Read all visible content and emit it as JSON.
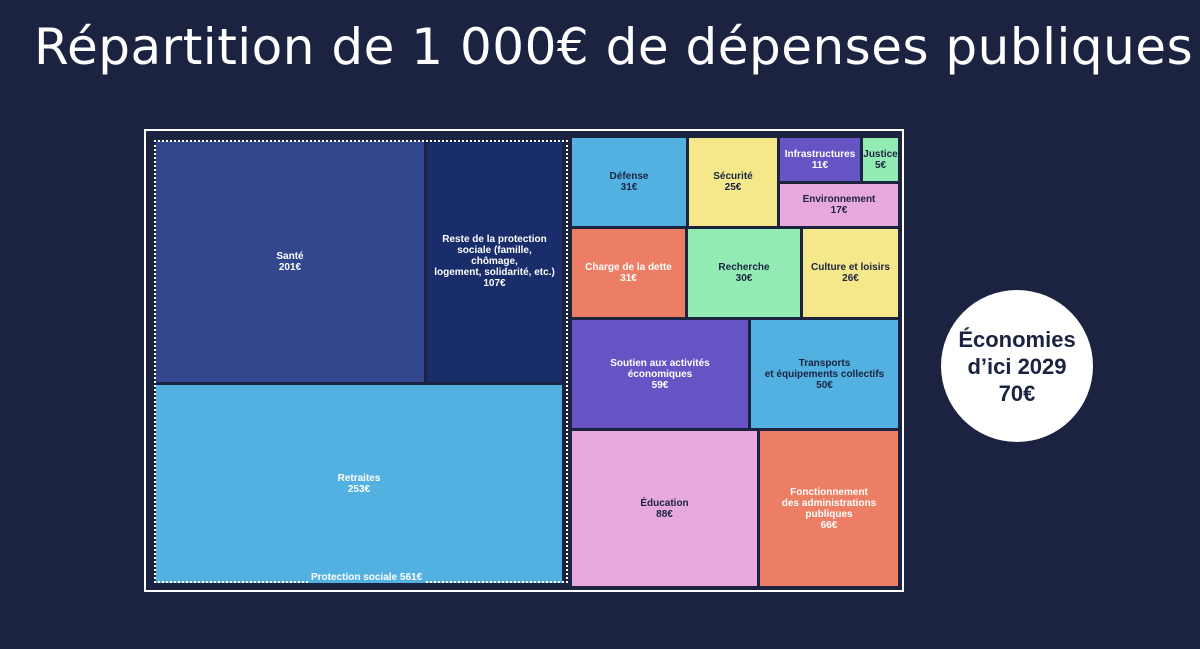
{
  "title": "Répartition de 1 000€ de dépenses publiques",
  "savings": {
    "line1": "Économies",
    "line2": "d’ici 2029",
    "amount": "70€"
  },
  "chart_data": {
    "type": "treemap",
    "title": "Répartition de 1 000€ de dépenses publiques",
    "unit": "€",
    "total": 1000,
    "group": {
      "name": "Protection sociale",
      "value": 561,
      "label": "Protection sociale 561€"
    },
    "items": [
      {
        "label": "Santé",
        "value": 201,
        "value_label": "201€",
        "group": "Protection sociale",
        "color": "#33478f",
        "text_color": "#ffffff"
      },
      {
        "label": "Reste de la protection sociale (famille, chômage, logement, solidarité, etc.)",
        "value": 107,
        "value_label": "107€",
        "group": "Protection sociale",
        "color": "#182d6a",
        "text_color": "#ffffff"
      },
      {
        "label": "Retraites",
        "value": 253,
        "value_label": "253€",
        "group": "Protection sociale",
        "color": "#52b1e1",
        "text_color": "#ffffff"
      },
      {
        "label": "Défense",
        "value": 31,
        "value_label": "31€",
        "color": "#52b1e1",
        "text_color": "#1b2340"
      },
      {
        "label": "Sécurité",
        "value": 25,
        "value_label": "25€",
        "color": "#f4e88a",
        "text_color": "#1b2340"
      },
      {
        "label": "Infrastructures",
        "value": 11,
        "value_label": "11€",
        "color": "#6654c4",
        "text_color": "#ffffff"
      },
      {
        "label": "Justice",
        "value": 5,
        "value_label": "5€",
        "color": "#93ebb4",
        "text_color": "#1b2340"
      },
      {
        "label": "Environnement",
        "value": 17,
        "value_label": "17€",
        "color": "#e7a8dd",
        "text_color": "#1b2340"
      },
      {
        "label": "Charge de la dette",
        "value": 31,
        "value_label": "31€",
        "color": "#ec7e65",
        "text_color": "#ffffff"
      },
      {
        "label": "Recherche",
        "value": 30,
        "value_label": "30€",
        "color": "#93ebb4",
        "text_color": "#1b2340"
      },
      {
        "label": "Culture et loisirs",
        "value": 26,
        "value_label": "26€",
        "color": "#f4e88a",
        "text_color": "#1b2340"
      },
      {
        "label": "Soutien aux activités économiques",
        "value": 59,
        "value_label": "59€",
        "color": "#6654c4",
        "text_color": "#ffffff"
      },
      {
        "label": "Transports et équipements collectifs",
        "value": 50,
        "value_label": "50€",
        "color": "#52b1e1",
        "text_color": "#1b2340"
      },
      {
        "label": "Éducation",
        "value": 88,
        "value_label": "88€",
        "color": "#e7a8dd",
        "text_color": "#1b2340"
      },
      {
        "label": "Fonctionnement des administrations publiques",
        "value": 66,
        "value_label": "66€",
        "color": "#ec7e65",
        "text_color": "#ffffff"
      }
    ]
  }
}
